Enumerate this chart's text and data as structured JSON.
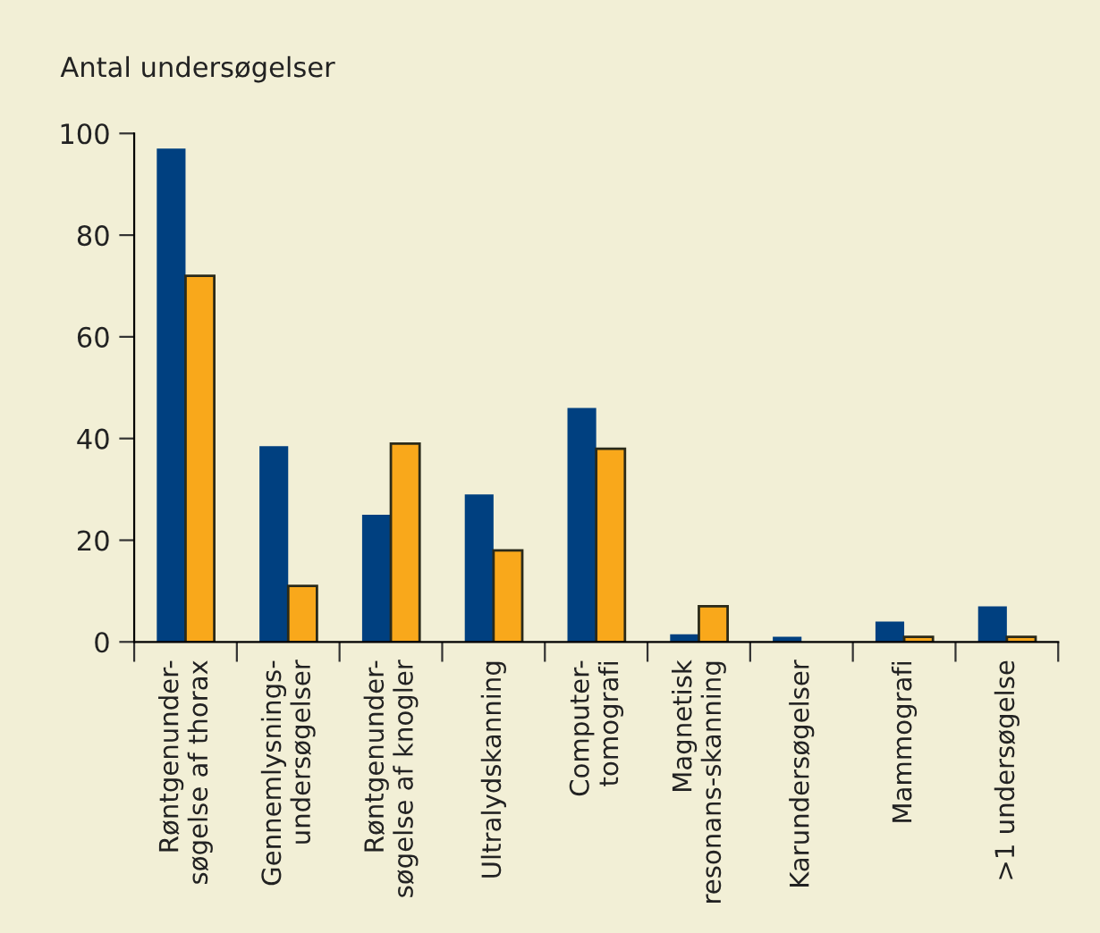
{
  "chart_data": {
    "type": "bar",
    "ylabel": "Antal undersøgelser",
    "categories": [
      "Røntgenunder-\nsøgelse af thorax",
      "Gennemlysnings-\nundersøgelser",
      "Røntgenunder-\nsøgelse af knogler",
      "Ultralydskanning",
      "Computer-\ntomografi",
      "Magnetisk\nresonans-skanning",
      "Karundersøgelser",
      "Mammografi",
      ">1 undersøgelse"
    ],
    "series": [
      {
        "color": "#004080",
        "values": [
          97,
          38.5,
          25,
          29,
          46,
          1.5,
          1,
          4,
          7
        ]
      },
      {
        "color": "#f9a81b",
        "values": [
          72,
          11,
          39,
          18,
          38,
          7,
          0,
          1,
          1
        ]
      }
    ],
    "ylim": [
      0,
      100
    ],
    "yticks": [
      0,
      20,
      40,
      60,
      80,
      100
    ],
    "grid": false,
    "legend": false
  }
}
